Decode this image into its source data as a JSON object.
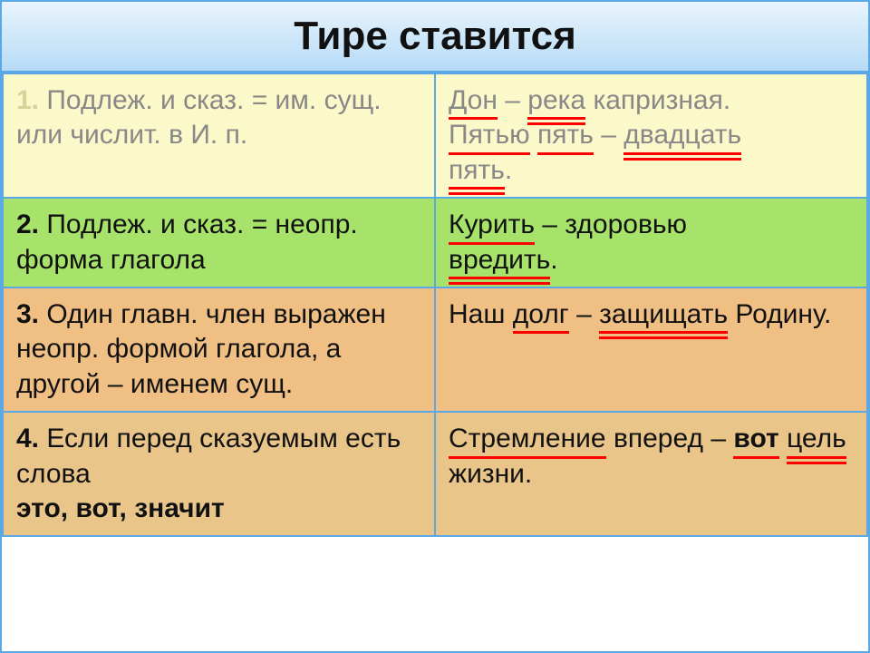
{
  "title": "Тире ставится",
  "table": {
    "columns": [
      "rule",
      "example"
    ],
    "row_backgrounds": [
      "#fbf8c9",
      "#a7e36a",
      "#f0bf84",
      "#e9c58a"
    ],
    "border_color": "#5aa9e6",
    "underline_color": "#ff0000",
    "font_size_pt": 22,
    "title_font_size_pt": 33
  },
  "rows": {
    "1": {
      "num": "1.",
      "rule": " Подлеж. и сказ. = им. сущ. или числит. в И. п.",
      "ex": {
        "t1a": "Дон",
        "t1b": " – ",
        "t1c": "река",
        "t1d": " капризная.",
        "t2a": "Пятью",
        "t2b": " ",
        "t2c": "пять",
        "t2d": " – ",
        "t2e": "двадцать",
        "t2f": "пять",
        "t2g": "."
      }
    },
    "2": {
      "num": "2.",
      "rule": " Подлеж. и сказ. = неопр. форма глагола",
      "ex": {
        "a": "Курить",
        "b": " – здоровью ",
        "c": "вредить",
        "d": "."
      }
    },
    "3": {
      "num": "3.",
      "rule": "  Один главн. член выражен неопр. формой глагола, а другой – именем сущ.",
      "ex": {
        "a": "Наш ",
        "b": "долг",
        "c": " – ",
        "d": "защищать",
        "e": " Родину."
      }
    },
    "4": {
      "num": "4.",
      "rule_a": " Если перед сказуемым есть слова ",
      "rule_b": "это, вот, значит",
      "ex": {
        "a": "Стремление",
        "b": " вперед – ",
        "c": "вот",
        "d": " ",
        "e": "цель",
        "f": " жизни."
      }
    }
  }
}
